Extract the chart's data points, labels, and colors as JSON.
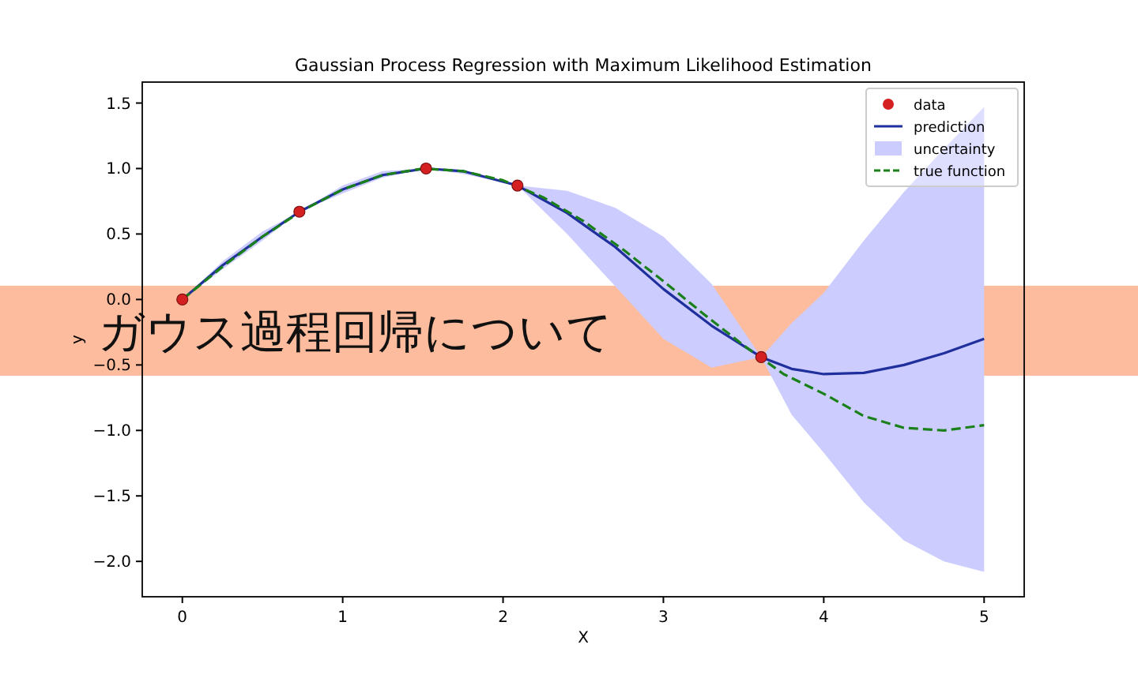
{
  "chart_data": {
    "type": "line",
    "title": "Gaussian Process Regression with Maximum Likelihood Estimation",
    "xlabel": "X",
    "ylabel": "y",
    "annotations": [
      "ガウス過程回帰について"
    ],
    "xlim": [
      -0.25,
      5.25
    ],
    "ylim": [
      -2.27,
      1.66
    ],
    "xticks": [
      0,
      1,
      2,
      3,
      4,
      5
    ],
    "yticks": [
      {
        "value": -2,
        "label": "−2.0"
      },
      {
        "value": -1.5,
        "label": "−1.5"
      },
      {
        "value": -1,
        "label": "−1.0"
      },
      {
        "value": -0.5,
        "label": "−0.5"
      },
      {
        "value": 0,
        "label": "0.0"
      },
      {
        "value": 0.5,
        "label": "0.5"
      },
      {
        "value": 1,
        "label": "1.0"
      },
      {
        "value": 1.5,
        "label": "1.5"
      }
    ],
    "grid": false,
    "legend": "top right",
    "series": [
      {
        "name": "data",
        "type": "scatter",
        "marker": "circle",
        "color": "#d42020",
        "x": [
          0,
          0.73,
          1.52,
          2.09,
          3.61
        ],
        "values": [
          0,
          0.67,
          1.0,
          0.87,
          -0.44
        ]
      },
      {
        "name": "prediction",
        "color": "#1f2f9c",
        "line_style": "solid",
        "x": [
          0,
          0.25,
          0.5,
          0.73,
          1,
          1.25,
          1.52,
          1.75,
          2.09,
          2.4,
          2.7,
          3.0,
          3.3,
          3.61,
          3.8,
          4.0,
          4.25,
          4.5,
          4.75,
          5.0
        ],
        "values": [
          0,
          0.26,
          0.48,
          0.67,
          0.84,
          0.95,
          1.0,
          0.98,
          0.87,
          0.66,
          0.4,
          0.08,
          -0.2,
          -0.44,
          -0.53,
          -0.57,
          -0.56,
          -0.5,
          -0.41,
          -0.3
        ],
        "upper": [
          0,
          0.29,
          0.52,
          0.67,
          0.87,
          0.98,
          1.0,
          0.99,
          0.87,
          0.83,
          0.7,
          0.48,
          0.12,
          -0.44,
          -0.18,
          0.05,
          0.45,
          0.82,
          1.15,
          1.47
        ],
        "lower": [
          0,
          0.23,
          0.45,
          0.67,
          0.81,
          0.93,
          1.0,
          0.96,
          0.87,
          0.5,
          0.1,
          -0.3,
          -0.52,
          -0.44,
          -0.88,
          -1.17,
          -1.55,
          -1.84,
          -2.0,
          -2.08
        ]
      },
      {
        "name": "uncertainty",
        "type": "area",
        "color": "#ccccff"
      },
      {
        "name": "true function",
        "type": "line",
        "color": "#1a801a",
        "line_style": "dashed",
        "x": [
          0,
          0.25,
          0.5,
          0.75,
          1,
          1.25,
          1.5,
          1.75,
          2,
          2.25,
          2.5,
          2.75,
          3,
          3.25,
          3.5,
          3.75,
          4,
          4.25,
          4.5,
          4.75,
          5
        ],
        "values": [
          0,
          0.25,
          0.48,
          0.68,
          0.84,
          0.95,
          1.0,
          0.98,
          0.91,
          0.78,
          0.6,
          0.38,
          0.14,
          -0.11,
          -0.35,
          -0.57,
          -0.72,
          -0.89,
          -0.98,
          -1.0,
          -0.96
        ]
      }
    ]
  }
}
